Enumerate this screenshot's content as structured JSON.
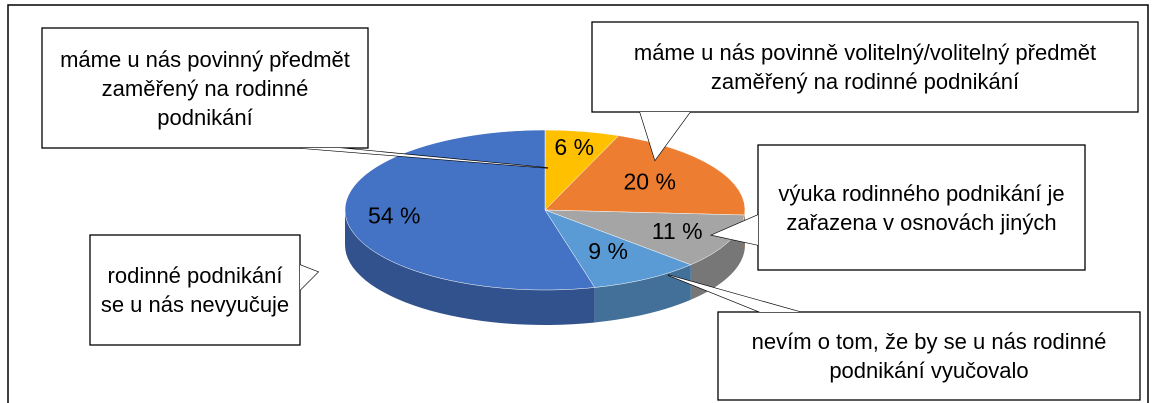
{
  "chart_data": {
    "type": "pie",
    "categories": [
      "máme u nás povinný předmět zaměřený na rodinné podnikání",
      "máme u nás povinně volitelný/volitelný předmět zaměřený na rodinné podnikání",
      "výuka rodinného podnikání je zařazena v osnovách jiných",
      "nevím o tom, že by se u nás rodinné podnikání vyučovalo",
      "rodinné podnikání se u nás nevyučuje"
    ],
    "values": [
      6,
      20,
      11,
      9,
      54
    ],
    "value_labels": [
      "6 %",
      "20 %",
      "11 %",
      "9 %",
      "54 %"
    ],
    "colors": [
      "#ffc000",
      "#ed7d31",
      "#a5a5a5",
      "#5b9bd5",
      "#4472c4"
    ]
  }
}
